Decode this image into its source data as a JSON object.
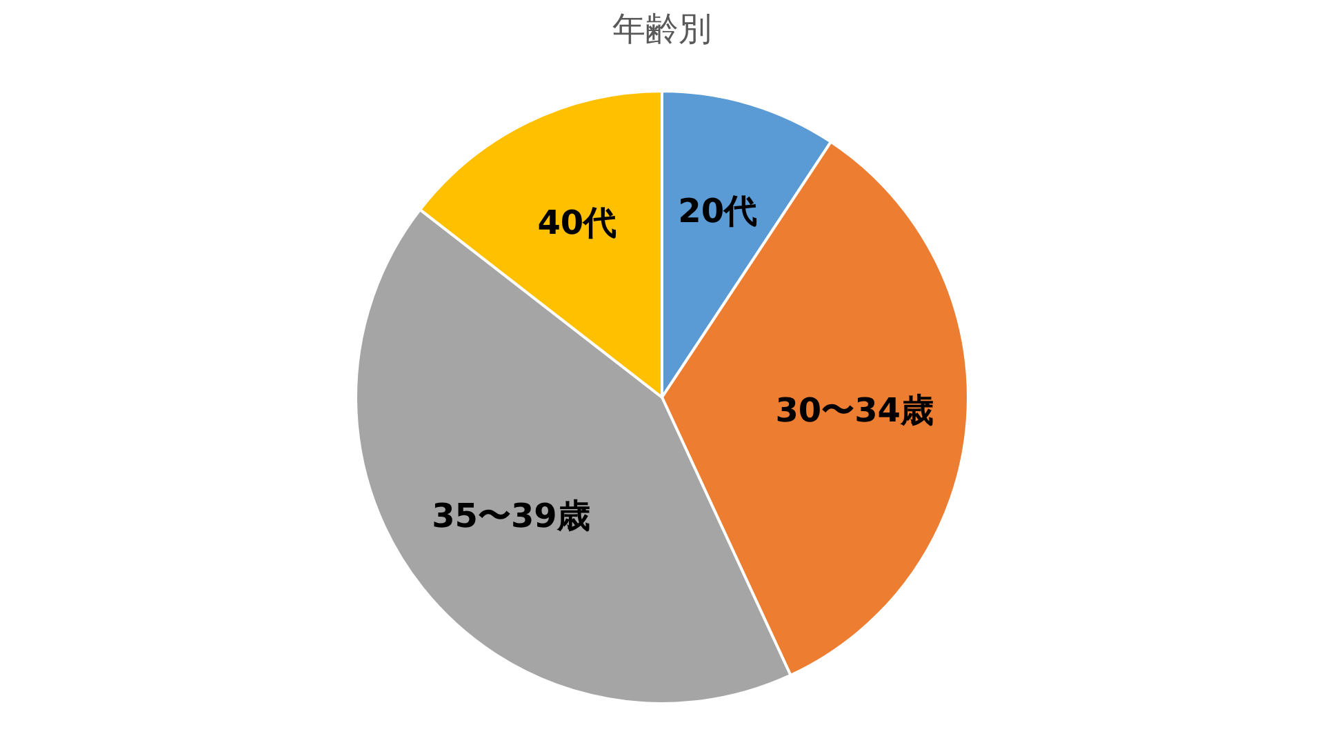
{
  "chart_data": {
    "type": "pie",
    "title": "年齢別",
    "categories": [
      "20代",
      "30〜34歳",
      "35〜39歳",
      "40代"
    ],
    "values": [
      9.3,
      33.8,
      42.4,
      14.5
    ],
    "colors": [
      "#5b9bd5",
      "#ed7d31",
      "#a5a5a5",
      "#ffc000"
    ],
    "legend": false
  }
}
